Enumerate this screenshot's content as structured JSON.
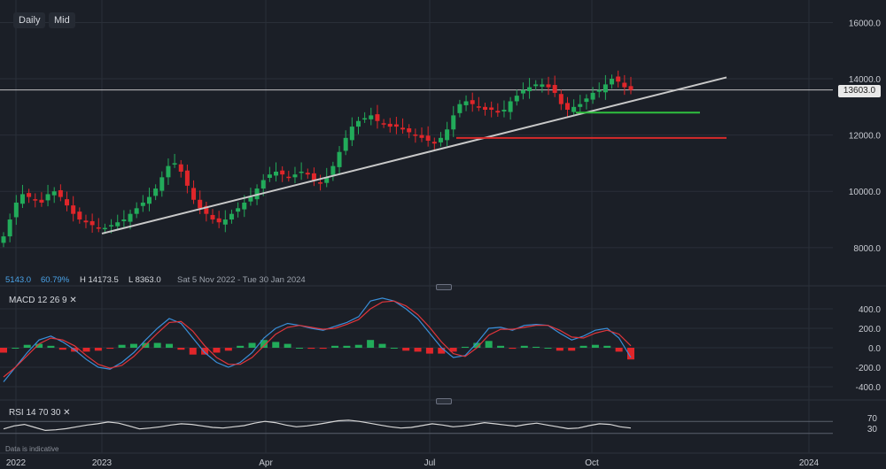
{
  "toolbar": {
    "interval": "Daily",
    "price_type": "Mid"
  },
  "info": {
    "volume": "5143.0",
    "change_pct": "60.79%",
    "high": "H 14173.5",
    "low": "L 8363.0",
    "range": "Sat 5 Nov 2022 - Tue 30 Jan 2024"
  },
  "last_price": "13603.0",
  "macd": {
    "label": "MACD",
    "params": "12 26 9"
  },
  "rsi": {
    "label": "RSI",
    "params": "14 70 30"
  },
  "disclaimer": "Data is indicative",
  "colors": {
    "up": "#22ab5a",
    "down": "#e0262a",
    "trend": "#c9c9c9",
    "support_green": "#2fbf3f",
    "support_red": "#d82a2a",
    "macd_line": "#3a8fd9",
    "signal_line": "#e0353b"
  },
  "chart_data": {
    "type": "candlestick",
    "x_ticks": [
      "2022",
      "2023",
      "Apr",
      "Jul",
      "Oct",
      "2024"
    ],
    "y_ticks": [
      "16000.0",
      "14000.0",
      "12000.0",
      "10000.0",
      "8000.0"
    ],
    "ylim": [
      6800,
      16800
    ],
    "close_series": [
      8400,
      9000,
      9600,
      9900,
      9800,
      9700,
      9600,
      9900,
      10000,
      9800,
      9500,
      9200,
      9000,
      8900,
      8800,
      8700,
      8700,
      8800,
      8900,
      9000,
      9200,
      9400,
      9600,
      9800,
      10100,
      10500,
      10900,
      11000,
      10700,
      10200,
      9700,
      9400,
      9200,
      9000,
      8900,
      9000,
      9200,
      9400,
      9600,
      9800,
      10100,
      10400,
      10600,
      10700,
      10600,
      10500,
      10600,
      10700,
      10600,
      10400,
      10300,
      10500,
      10900,
      11400,
      11900,
      12300,
      12500,
      12600,
      12700,
      12500,
      12400,
      12300,
      12300,
      12200,
      12100,
      12000,
      11900,
      11800,
      11700,
      11900,
      12200,
      12700,
      13100,
      13200,
      13100,
      13000,
      12900,
      12900,
      12800,
      12900,
      13200,
      13400,
      13600,
      13700,
      13800,
      13800,
      13700,
      13500,
      13100,
      12900,
      13000,
      13100,
      13300,
      13500,
      13600,
      13800,
      14000,
      13900,
      13700,
      13600
    ],
    "annotations": {
      "trendline": [
        [
          0,
          8400
        ],
        [
          1,
          14000
        ]
      ],
      "green_support": 12800,
      "red_support": 11900,
      "price_line": 13603
    },
    "macd": {
      "yticks": [
        "400.0",
        "200.0",
        "0.0",
        "-200.0",
        "-400.0"
      ],
      "ylim": [
        -500,
        500
      ],
      "macd_line": [
        -350,
        -200,
        -50,
        80,
        120,
        60,
        -20,
        -120,
        -200,
        -220,
        -150,
        -50,
        80,
        200,
        300,
        250,
        100,
        -50,
        -150,
        -200,
        -150,
        -50,
        100,
        200,
        250,
        230,
        200,
        180,
        220,
        260,
        320,
        480,
        510,
        480,
        400,
        300,
        150,
        0,
        -100,
        -80,
        50,
        200,
        210,
        180,
        230,
        240,
        230,
        150,
        80,
        120,
        180,
        200,
        100,
        -100
      ],
      "signal_line": [
        -300,
        -200,
        -80,
        40,
        100,
        80,
        20,
        -80,
        -170,
        -210,
        -180,
        -90,
        30,
        150,
        260,
        270,
        170,
        20,
        -100,
        -170,
        -170,
        -100,
        20,
        140,
        210,
        230,
        210,
        190,
        200,
        240,
        290,
        400,
        470,
        480,
        430,
        340,
        210,
        60,
        -60,
        -90,
        0,
        130,
        190,
        190,
        210,
        230,
        230,
        180,
        110,
        100,
        150,
        180,
        140,
        20
      ],
      "histogram": [
        -50,
        0,
        30,
        40,
        20,
        -20,
        -40,
        -40,
        -30,
        -10,
        30,
        40,
        50,
        50,
        40,
        -20,
        -70,
        -70,
        -50,
        -30,
        20,
        50,
        80,
        60,
        40,
        0,
        -10,
        -10,
        20,
        20,
        30,
        80,
        40,
        0,
        -30,
        -40,
        -60,
        -60,
        -40,
        10,
        50,
        70,
        20,
        -10,
        20,
        10,
        0,
        -30,
        -30,
        20,
        30,
        20,
        -40,
        -120
      ]
    },
    "rsi": {
      "yticks": [
        "70",
        "30"
      ],
      "ylim": [
        0,
        100
      ],
      "upper": 70,
      "lower": 30,
      "values": [
        45,
        55,
        60,
        50,
        40,
        42,
        46,
        52,
        58,
        62,
        68,
        64,
        55,
        45,
        48,
        52,
        58,
        62,
        60,
        55,
        50,
        48,
        52,
        56,
        64,
        70,
        66,
        58,
        52,
        55,
        60,
        66,
        72,
        74,
        70,
        64,
        58,
        52,
        48,
        50,
        56,
        62,
        58,
        52,
        55,
        60,
        66,
        62,
        58,
        54,
        60,
        64,
        58,
        52,
        46,
        48,
        56,
        62,
        60,
        52,
        48
      ]
    }
  }
}
